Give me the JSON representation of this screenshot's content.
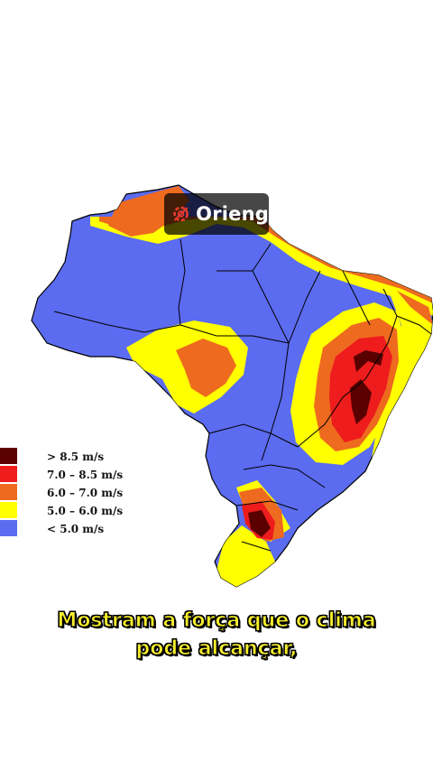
{
  "brand": {
    "name": "Orieng",
    "icon": "gear-logo-icon",
    "accent": "#e8392c"
  },
  "legend": [
    {
      "label": "> 8.5 m/s",
      "color": "#5a0000"
    },
    {
      "label": "7.0 – 8.5 m/s",
      "color": "#ee1c1c"
    },
    {
      "label": "6.0 – 7.0 m/s",
      "color": "#ee6a1f"
    },
    {
      "label": "5.0 – 6.0 m/s",
      "color": "#ffff00"
    },
    {
      "label": "< 5.0 m/s",
      "color": "#5b6cf0"
    }
  ],
  "caption": {
    "line1": "Mostram a força que o clima",
    "line2": "pode alcançar,"
  }
}
